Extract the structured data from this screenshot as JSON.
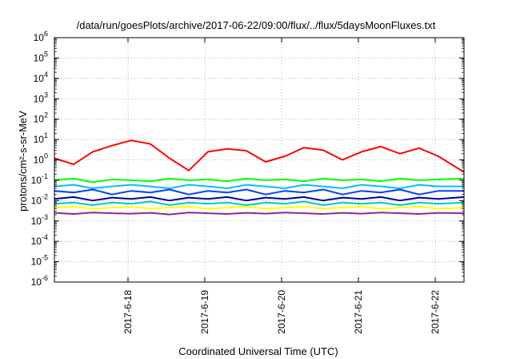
{
  "chart_data": {
    "type": "line",
    "title": "/data/run/goesPlots/archive/2017-06-22/09:00/flux/../flux/5daysMoonFluxes.txt",
    "xlabel": "Coordinated Universal Time (UTC)",
    "ylabel": "protons/cm²-s-sr-MeV",
    "y_scale": "log",
    "ylim_exponents": [
      -6,
      6
    ],
    "y_tick_base": "10",
    "y_tick_exponents": [
      "-6",
      "-5",
      "-4",
      "-3",
      "-2",
      "-1",
      "0",
      "1",
      "2",
      "3",
      "4",
      "5",
      "6"
    ],
    "x_domain_days": [
      "2017-6-17 01:00",
      "2017-6-22 09:00"
    ],
    "x_tick_labels": [
      "2017-6-18",
      "2017-6-19",
      "2017-6-20",
      "2017-6-21",
      "2017-6-22"
    ],
    "grid": "dotted, both axes",
    "legend": "none",
    "x_times": [
      "2017-6-17 01:00",
      "2017-6-17 07:00",
      "2017-6-17 13:00",
      "2017-6-17 19:00",
      "2017-6-18 01:00",
      "2017-6-18 07:00",
      "2017-6-18 13:00",
      "2017-6-18 19:00",
      "2017-6-19 01:00",
      "2017-6-19 07:00",
      "2017-6-19 13:00",
      "2017-6-19 19:00",
      "2017-6-20 01:00",
      "2017-6-20 07:00",
      "2017-6-20 13:00",
      "2017-6-20 19:00",
      "2017-6-21 01:00",
      "2017-6-21 07:00",
      "2017-6-21 13:00",
      "2017-6-21 19:00",
      "2017-6-22 01:00",
      "2017-6-22 09:00"
    ],
    "series": [
      {
        "color": "#ff0000",
        "values": [
          1.2,
          0.6,
          2.5,
          5,
          9,
          6,
          1.2,
          0.3,
          2.5,
          3.5,
          2.8,
          0.8,
          1.5,
          4,
          3,
          1.0,
          2.5,
          4.5,
          2.0,
          3.8,
          1.5,
          0.25
        ]
      },
      {
        "color": "#00ff00",
        "values": [
          0.1,
          0.12,
          0.08,
          0.11,
          0.1,
          0.09,
          0.12,
          0.1,
          0.11,
          0.09,
          0.12,
          0.1,
          0.11,
          0.09,
          0.12,
          0.1,
          0.11,
          0.09,
          0.12,
          0.1,
          0.11,
          0.12
        ]
      },
      {
        "color": "#00bfff",
        "values": [
          0.05,
          0.06,
          0.04,
          0.05,
          0.06,
          0.05,
          0.04,
          0.06,
          0.05,
          0.04,
          0.06,
          0.05,
          0.04,
          0.06,
          0.05,
          0.04,
          0.06,
          0.05,
          0.04,
          0.06,
          0.05,
          0.05
        ]
      },
      {
        "color": "#0040ff",
        "values": [
          0.03,
          0.025,
          0.035,
          0.02,
          0.03,
          0.025,
          0.035,
          0.02,
          0.03,
          0.025,
          0.035,
          0.02,
          0.03,
          0.025,
          0.035,
          0.02,
          0.03,
          0.025,
          0.035,
          0.02,
          0.03,
          0.03
        ]
      },
      {
        "color": "#0000a0",
        "values": [
          0.012,
          0.015,
          0.01,
          0.014,
          0.012,
          0.015,
          0.01,
          0.014,
          0.012,
          0.015,
          0.01,
          0.014,
          0.012,
          0.015,
          0.01,
          0.014,
          0.012,
          0.015,
          0.01,
          0.014,
          0.012,
          0.015
        ]
      },
      {
        "color": "#00c8c8",
        "values": [
          0.007,
          0.008,
          0.006,
          0.008,
          0.007,
          0.009,
          0.006,
          0.008,
          0.007,
          0.008,
          0.006,
          0.008,
          0.007,
          0.009,
          0.006,
          0.008,
          0.007,
          0.008,
          0.006,
          0.008,
          0.007,
          0.008
        ]
      },
      {
        "color": "#ffff00",
        "values": [
          0.0045,
          0.005,
          0.004,
          0.0045,
          0.005,
          0.004,
          0.0045,
          0.005,
          0.004,
          0.0045,
          0.005,
          0.004,
          0.0045,
          0.005,
          0.004,
          0.0045,
          0.005,
          0.004,
          0.0045,
          0.005,
          0.004,
          0.0045
        ]
      },
      {
        "color": "#8b2c8b",
        "values": [
          0.0025,
          0.0022,
          0.0026,
          0.0024,
          0.0023,
          0.0025,
          0.0021,
          0.0026,
          0.0024,
          0.0022,
          0.0025,
          0.0023,
          0.0026,
          0.0024,
          0.0022,
          0.0025,
          0.0023,
          0.0026,
          0.0024,
          0.0022,
          0.0025,
          0.0024
        ]
      }
    ]
  }
}
